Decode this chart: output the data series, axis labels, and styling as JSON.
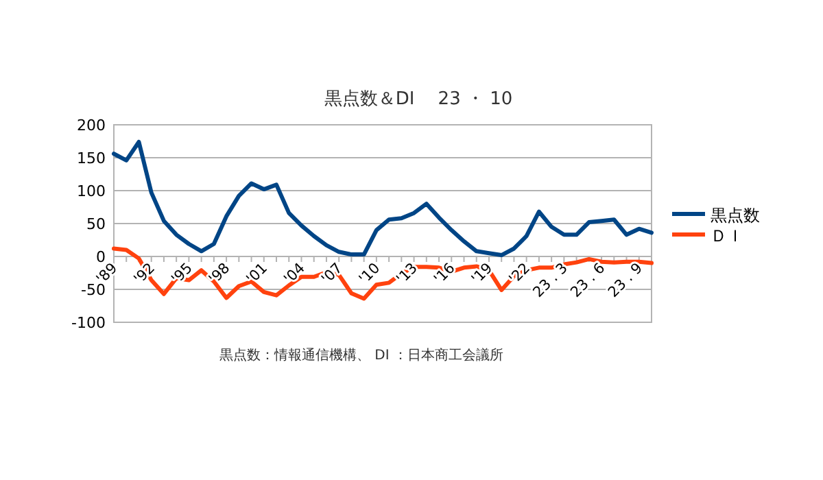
{
  "chart_data": {
    "type": "line",
    "title": "黒点数＆DI　 23 ・ 10",
    "categories": [
      "'89",
      null,
      null,
      "'92",
      null,
      null,
      "'95",
      null,
      null,
      "'98",
      null,
      null,
      "'01",
      null,
      null,
      "'04",
      null,
      null,
      "'07",
      null,
      null,
      "'10",
      null,
      null,
      "'13",
      null,
      null,
      "'16",
      null,
      null,
      "'19",
      null,
      null,
      "'22",
      null,
      null,
      "23 . 3",
      null,
      null,
      "23 . 6",
      null,
      null,
      "23 . 9",
      null
    ],
    "series": [
      {
        "name": "黒点数",
        "color": "#004586",
        "values": [
          156,
          146,
          174,
          97,
          54,
          33,
          19,
          8,
          19,
          61,
          92,
          111,
          102,
          109,
          66,
          47,
          31,
          17,
          7,
          3,
          3,
          40,
          56,
          58,
          66,
          80,
          59,
          40,
          23,
          8,
          5,
          2,
          12,
          31,
          68,
          45,
          33,
          33,
          52,
          54,
          56,
          33,
          42,
          36
        ]
      },
      {
        "name": "ＤＩ",
        "color": "#ff420e",
        "values": [
          12,
          10,
          -3,
          -36,
          -57,
          -33,
          -36,
          -21,
          -38,
          -63,
          -45,
          -38,
          -54,
          -59,
          -44,
          -31,
          -31,
          -24,
          -28,
          -56,
          -64,
          -43,
          -40,
          -26,
          -16,
          -16,
          -17,
          -23,
          -17,
          -15,
          -21,
          -51,
          -30,
          -21,
          -17,
          -17,
          -12,
          -9,
          -4,
          -8,
          -9,
          -8,
          -8,
          -10
        ]
      }
    ],
    "ylim": [
      -100,
      200
    ],
    "yticks": [
      -100,
      -50,
      0,
      50,
      100,
      150,
      200
    ],
    "grid": "y",
    "legend": "right",
    "annotations": [
      "黒点数：情報通信機構、 DI ：日本商工会議所"
    ]
  }
}
